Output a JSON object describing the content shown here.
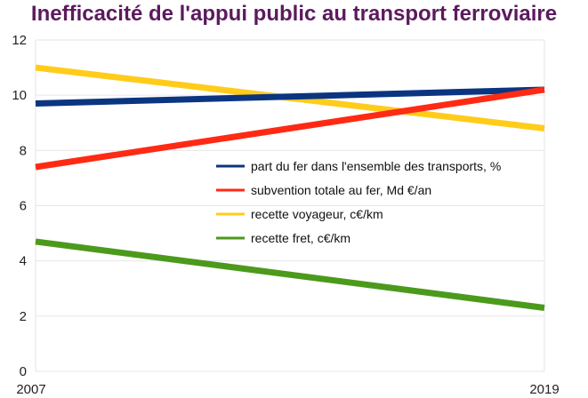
{
  "chart_data": {
    "type": "line",
    "title": "Inefficacité de l'appui public au transport ferroviaire",
    "xlabel": "",
    "ylabel": "",
    "x": [
      "2007",
      "2019"
    ],
    "ylim": [
      0,
      12
    ],
    "yticks": [
      "0",
      "2",
      "4",
      "6",
      "8",
      "10",
      "12"
    ],
    "grid": true,
    "legend_position": "center-right",
    "series": [
      {
        "name": "part du fer dans l'ensemble des transports, %",
        "color": "#0b3580",
        "values": [
          9.7,
          10.2
        ]
      },
      {
        "name": "subvention totale au fer, Md €/an",
        "color": "#ff2a14",
        "values": [
          7.4,
          10.2
        ]
      },
      {
        "name": "recette voyageur, c€/km",
        "color": "#ffcc1a",
        "values": [
          11.0,
          8.8
        ]
      },
      {
        "name": "recette fret, c€/km",
        "color": "#4c9a1c",
        "values": [
          4.7,
          2.3
        ]
      }
    ]
  }
}
